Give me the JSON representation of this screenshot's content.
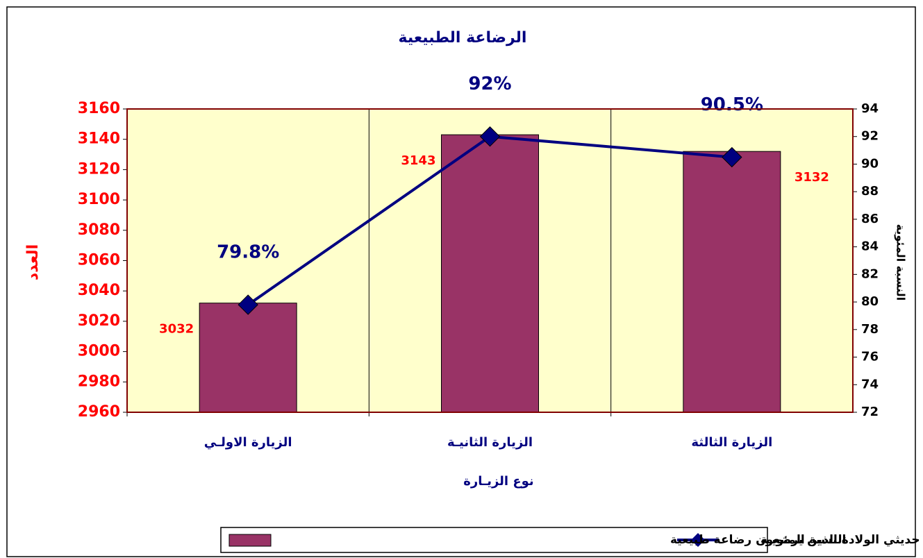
{
  "chart_data": {
    "type": "bar",
    "title": "الرضاعة الطبيعية",
    "x_label": "نوع الزيـارة",
    "y_label": "العدد",
    "y2_label": "النسبة المئوية",
    "categories": [
      "الزيارة الاولـي",
      "الزيارة الثانيـة",
      "الزيارة الثالثة"
    ],
    "series": [
      {
        "name": "عدد حديثي الولادة الذين يرضعون رضاعة طبيعية",
        "type": "bar",
        "color": "#993366",
        "values": [
          3032,
          3143,
          3132
        ]
      },
      {
        "name": "النسبة المئويـة",
        "type": "line",
        "axis": "y2",
        "color": "#000080",
        "values": [
          79.8,
          92,
          90.5
        ],
        "value_labels": [
          "79.8%",
          "92%",
          "90.5%"
        ]
      }
    ],
    "ylim": [
      2960,
      3160
    ],
    "yticks": [
      2960,
      2980,
      3000,
      3020,
      3040,
      3060,
      3080,
      3100,
      3120,
      3140,
      3160
    ],
    "y2lim": [
      72,
      94
    ],
    "y2ticks": [
      72,
      74,
      76,
      78,
      80,
      82,
      84,
      86,
      88,
      90,
      92,
      94
    ],
    "plot_background": "#ffffcc",
    "legend": "bottom"
  }
}
